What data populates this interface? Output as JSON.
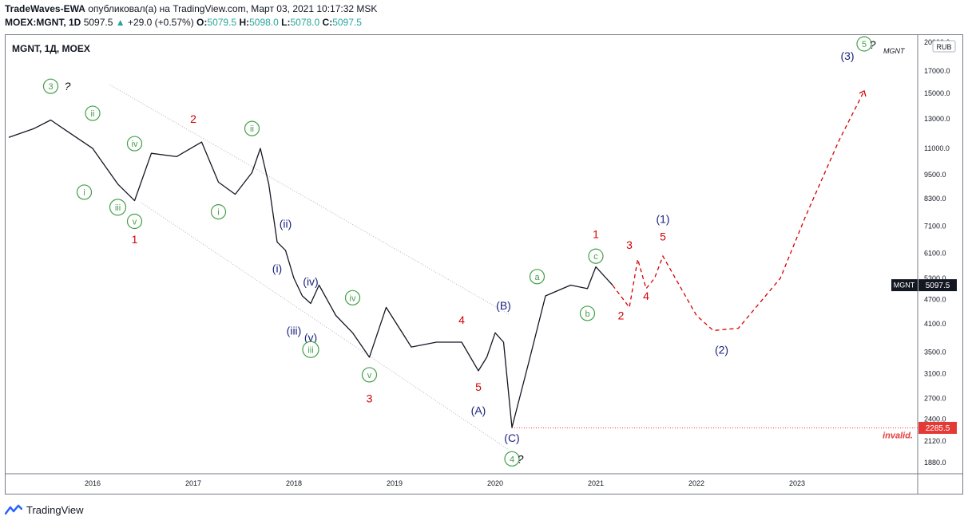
{
  "header": {
    "line1_author": "TradeWaves-EWA",
    "line1_rest": " опубликовал(а) на TradingView.com, Март 03, 2021 10:17:32 MSK",
    "symbol": "MOEX:MGNT, 1D",
    "last": "5097.5",
    "change": "+29.0 (+0.57%)",
    "o_label": "O:",
    "o": "5079.5",
    "h_label": "H:",
    "h": "5098.0",
    "l_label": "L:",
    "l": "5078.0",
    "c_label": "C:",
    "c": "5097.5"
  },
  "chart_title": "MGNT, 1Д, MOEX",
  "watermark": "MGNT",
  "currency": "RUB",
  "price_tag": {
    "symbol": "MGNT",
    "value": "5097.5"
  },
  "invalid_tag": {
    "value": "2285.5",
    "label": "invalid."
  },
  "footer": {
    "brand": "TradingView"
  },
  "colors": {
    "green": "#43a047",
    "red": "#d50000",
    "blue": "#1a237e",
    "invalid": "#e53935"
  },
  "chart_data": {
    "type": "line",
    "title": "MGNT, 1Д, MOEX",
    "y_scale": "log",
    "y_ticks": [
      1880,
      2120,
      2400,
      2700,
      3100,
      3500,
      4100,
      4700,
      5300,
      6100,
      7100,
      8300,
      9500,
      11000,
      13000,
      15000,
      17000,
      20000
    ],
    "x_ticks": [
      "2016",
      "2017",
      "2018",
      "2019",
      "2020",
      "2021",
      "2022",
      "2023"
    ],
    "series": [
      {
        "x": [
          "2015-03",
          "2015-06",
          "2015-08",
          "2015-10",
          "2016-01",
          "2016-04",
          "2016-06",
          "2016-08",
          "2016-11",
          "2017-02",
          "2017-04",
          "2017-06",
          "2017-08",
          "2017-09",
          "2017-10",
          "2017-11",
          "2017-12",
          "2018-01",
          "2018-02",
          "2018-03",
          "2018-04",
          "2018-06",
          "2018-08",
          "2018-10",
          "2018-12",
          "2019-03",
          "2019-06",
          "2019-09",
          "2019-11",
          "2019-12",
          "2020-01",
          "2020-02",
          "2020-03",
          "2020-05",
          "2020-07",
          "2020-10",
          "2020-12",
          "2021-01",
          "2021-03"
        ],
        "values": [
          11700,
          12300,
          12900,
          12100,
          11000,
          9000,
          8200,
          10700,
          10500,
          11400,
          9100,
          8500,
          9600,
          11000,
          9000,
          6500,
          6200,
          5300,
          4800,
          4600,
          5100,
          4300,
          3900,
          3400,
          4500,
          3600,
          3700,
          3700,
          3150,
          3400,
          3900,
          3700,
          2290,
          3300,
          4800,
          5100,
          5000,
          5650,
          5097.5
        ]
      }
    ],
    "projection": {
      "x": [
        "2021-03",
        "2021-05",
        "2021-06",
        "2021-07",
        "2021-08",
        "2021-09",
        "2022-01",
        "2022-03",
        "2022-06",
        "2022-11",
        "2023-02",
        "2023-06",
        "2023-09"
      ],
      "values": [
        5097.5,
        4500,
        5900,
        5000,
        5300,
        6000,
        4300,
        3950,
        4000,
        5300,
        7500,
        11500,
        15200
      ]
    },
    "invalidation": {
      "value": 2285.5,
      "label": "invalid."
    },
    "annotations": [
      {
        "label": "3",
        "color": "green",
        "circled": true,
        "x": "2015-08",
        "value": 15600
      },
      {
        "label": "?",
        "color": "dark",
        "circled": false,
        "x": "2015-10",
        "value": 15600
      },
      {
        "label": "ii",
        "color": "green",
        "circled": true,
        "x": "2016-01",
        "value": 13400
      },
      {
        "label": "iv",
        "color": "green",
        "circled": true,
        "x": "2016-06",
        "value": 11300
      },
      {
        "label": "i",
        "color": "green",
        "circled": true,
        "x": "2015-12",
        "value": 8600
      },
      {
        "label": "iii",
        "color": "green",
        "circled": true,
        "x": "2016-04",
        "value": 7900
      },
      {
        "label": "v",
        "color": "green",
        "circled": true,
        "x": "2016-06",
        "value": 7300
      },
      {
        "label": "1",
        "color": "red",
        "circled": false,
        "x": "2016-06",
        "value": 6600
      },
      {
        "label": "2",
        "color": "red",
        "circled": false,
        "x": "2017-01",
        "value": 13000
      },
      {
        "label": "ii",
        "color": "green",
        "circled": true,
        "x": "2017-08",
        "value": 12300
      },
      {
        "label": "i",
        "color": "green",
        "circled": true,
        "x": "2017-04",
        "value": 7700
      },
      {
        "label": "(ii)",
        "color": "blue",
        "circled": false,
        "x": "2017-12",
        "value": 7200
      },
      {
        "label": "(i)",
        "color": "blue",
        "circled": false,
        "x": "2017-11",
        "value": 5600
      },
      {
        "label": "(iv)",
        "color": "blue",
        "circled": false,
        "x": "2018-03",
        "value": 5200
      },
      {
        "label": "(iii)",
        "color": "blue",
        "circled": false,
        "x": "2018-01",
        "value": 3950
      },
      {
        "label": "(v)",
        "color": "blue",
        "circled": false,
        "x": "2018-03",
        "value": 3800
      },
      {
        "label": "iii",
        "color": "green",
        "circled": true,
        "x": "2018-03",
        "value": 3550
      },
      {
        "label": "iv",
        "color": "green",
        "circled": true,
        "x": "2018-08",
        "value": 4750
      },
      {
        "label": "v",
        "color": "green",
        "circled": true,
        "x": "2018-10",
        "value": 3080
      },
      {
        "label": "3",
        "color": "red",
        "circled": false,
        "x": "2018-10",
        "value": 2700
      },
      {
        "label": "4",
        "color": "red",
        "circled": false,
        "x": "2019-09",
        "value": 4200
      },
      {
        "label": "5",
        "color": "red",
        "circled": false,
        "x": "2019-11",
        "value": 2880
      },
      {
        "label": "(A)",
        "color": "blue",
        "circled": false,
        "x": "2019-11",
        "value": 2520
      },
      {
        "label": "(B)",
        "color": "blue",
        "circled": false,
        "x": "2020-02",
        "value": 4550
      },
      {
        "label": "(C)",
        "color": "blue",
        "circled": false,
        "x": "2020-03",
        "value": 2160
      },
      {
        "label": "4",
        "color": "green",
        "circled": true,
        "x": "2020-03",
        "value": 1920
      },
      {
        "label": "?",
        "color": "dark",
        "circled": false,
        "x": "2020-04",
        "value": 1920
      },
      {
        "label": "a",
        "color": "green",
        "circled": true,
        "x": "2020-06",
        "value": 5350
      },
      {
        "label": "b",
        "color": "green",
        "circled": true,
        "x": "2020-12",
        "value": 4350
      },
      {
        "label": "c",
        "color": "green",
        "circled": true,
        "x": "2021-01",
        "value": 6000
      },
      {
        "label": "1",
        "color": "red",
        "circled": false,
        "x": "2021-01",
        "value": 6800
      },
      {
        "label": "(1)",
        "color": "blue",
        "circled": false,
        "x": "2021-09",
        "value": 7400
      },
      {
        "label": "3",
        "color": "red",
        "circled": false,
        "x": "2021-05",
        "value": 6400
      },
      {
        "label": "5",
        "color": "red",
        "circled": false,
        "x": "2021-09",
        "value": 6700
      },
      {
        "label": "2",
        "color": "red",
        "circled": false,
        "x": "2021-04",
        "value": 4300
      },
      {
        "label": "4",
        "color": "red",
        "circled": false,
        "x": "2021-07",
        "value": 4800
      },
      {
        "label": "(2)",
        "color": "blue",
        "circled": false,
        "x": "2022-04",
        "value": 3550
      },
      {
        "label": "(3)",
        "color": "blue",
        "circled": false,
        "x": "2023-07",
        "value": 18500
      },
      {
        "label": "5",
        "color": "green",
        "circled": true,
        "x": "2023-09",
        "value": 19800
      },
      {
        "label": "?",
        "color": "dark",
        "circled": false,
        "x": "2023-10",
        "value": 19700
      }
    ]
  }
}
